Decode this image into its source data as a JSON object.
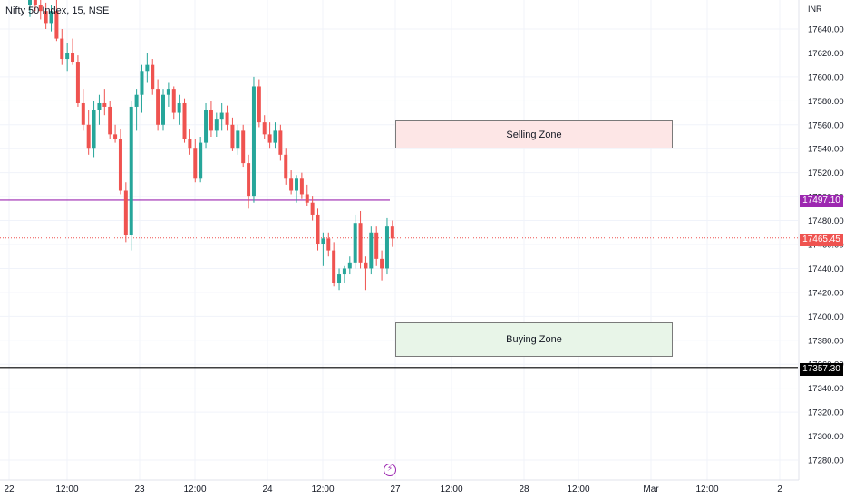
{
  "header": {
    "symbol_title": "Nifty 50 Index, 15, NSE",
    "currency": "INR"
  },
  "zones": {
    "selling": "Selling Zone",
    "buying": "Buying Zone"
  },
  "price_tags": {
    "purple": "17497.10",
    "current": "17465.45",
    "black": "17357.30"
  },
  "icons": {
    "event_marker": "lightning-icon"
  },
  "colors": {
    "up": "#26a69a",
    "down": "#ef5350",
    "purple_line": "#9c27b0",
    "black_line": "#000000",
    "current_line": "#ef5350",
    "grid": "#f0f3fa"
  },
  "chart_data": {
    "type": "candlestick",
    "title": "Nifty 50 Index, 15, NSE",
    "y_axis": {
      "unit": "INR",
      "ticks": [
        17640,
        17620,
        17600,
        17580,
        17560,
        17540,
        17520,
        17500,
        17480,
        17460,
        17440,
        17420,
        17400,
        17380,
        17360,
        17340,
        17320,
        17300,
        17280
      ],
      "tick_labels": [
        "17640.00",
        "17620.00",
        "17600.00",
        "17580.00",
        "17560.00",
        "17540.00",
        "17520.00",
        "17500.00",
        "17480.00",
        "17460.00",
        "17440.00",
        "17420.00",
        "17400.00",
        "17380.00",
        "17360.00",
        "17340.00",
        "17320.00",
        "17300.00",
        "17280.00"
      ],
      "ylim": [
        17268,
        17670
      ]
    },
    "x_axis": {
      "labels": [
        "22",
        "12:00",
        "23",
        "12:00",
        "24",
        "12:00",
        "27",
        "12:00",
        "28",
        "12:00",
        "Mar",
        "12:00",
        "2"
      ]
    },
    "horizontal_lines": [
      {
        "value": 17497.1,
        "color": "#9c27b0",
        "style": "solid"
      },
      {
        "value": 17465.45,
        "color": "#ef5350",
        "style": "dotted"
      },
      {
        "value": 17357.3,
        "color": "#000000",
        "style": "solid"
      }
    ],
    "zones": [
      {
        "label": "Selling Zone",
        "from": 17538,
        "to": 17568
      },
      {
        "label": "Buying Zone",
        "from": 17366,
        "to": 17402
      }
    ],
    "candles": [
      {
        "o": 17660,
        "h": 17672,
        "l": 17650,
        "c": 17665
      },
      {
        "o": 17668,
        "h": 17674,
        "l": 17655,
        "c": 17660
      },
      {
        "o": 17660,
        "h": 17672,
        "l": 17648,
        "c": 17655
      },
      {
        "o": 17655,
        "h": 17662,
        "l": 17640,
        "c": 17645
      },
      {
        "o": 17645,
        "h": 17660,
        "l": 17638,
        "c": 17655
      },
      {
        "o": 17655,
        "h": 17665,
        "l": 17630,
        "c": 17632
      },
      {
        "o": 17632,
        "h": 17640,
        "l": 17610,
        "c": 17615
      },
      {
        "o": 17615,
        "h": 17628,
        "l": 17605,
        "c": 17620
      },
      {
        "o": 17620,
        "h": 17632,
        "l": 17610,
        "c": 17612
      },
      {
        "o": 17612,
        "h": 17618,
        "l": 17575,
        "c": 17578
      },
      {
        "o": 17578,
        "h": 17590,
        "l": 17555,
        "c": 17560
      },
      {
        "o": 17560,
        "h": 17572,
        "l": 17535,
        "c": 17540
      },
      {
        "o": 17540,
        "h": 17580,
        "l": 17533,
        "c": 17572
      },
      {
        "o": 17572,
        "h": 17585,
        "l": 17560,
        "c": 17578
      },
      {
        "o": 17578,
        "h": 17590,
        "l": 17568,
        "c": 17575
      },
      {
        "o": 17575,
        "h": 17580,
        "l": 17548,
        "c": 17552
      },
      {
        "o": 17552,
        "h": 17560,
        "l": 17545,
        "c": 17548
      },
      {
        "o": 17548,
        "h": 17556,
        "l": 17502,
        "c": 17505
      },
      {
        "o": 17505,
        "h": 17512,
        "l": 17462,
        "c": 17468
      },
      {
        "o": 17468,
        "h": 17580,
        "l": 17455,
        "c": 17575
      },
      {
        "o": 17575,
        "h": 17590,
        "l": 17555,
        "c": 17585
      },
      {
        "o": 17585,
        "h": 17610,
        "l": 17570,
        "c": 17605
      },
      {
        "o": 17605,
        "h": 17620,
        "l": 17595,
        "c": 17610
      },
      {
        "o": 17610,
        "h": 17615,
        "l": 17585,
        "c": 17590
      },
      {
        "o": 17590,
        "h": 17598,
        "l": 17555,
        "c": 17560
      },
      {
        "o": 17560,
        "h": 17590,
        "l": 17555,
        "c": 17585
      },
      {
        "o": 17585,
        "h": 17595,
        "l": 17575,
        "c": 17590
      },
      {
        "o": 17590,
        "h": 17592,
        "l": 17565,
        "c": 17570
      },
      {
        "o": 17570,
        "h": 17585,
        "l": 17560,
        "c": 17578
      },
      {
        "o": 17578,
        "h": 17582,
        "l": 17545,
        "c": 17548
      },
      {
        "o": 17548,
        "h": 17556,
        "l": 17535,
        "c": 17540
      },
      {
        "o": 17540,
        "h": 17548,
        "l": 17512,
        "c": 17515
      },
      {
        "o": 17515,
        "h": 17550,
        "l": 17512,
        "c": 17545
      },
      {
        "o": 17545,
        "h": 17578,
        "l": 17540,
        "c": 17572
      },
      {
        "o": 17572,
        "h": 17580,
        "l": 17550,
        "c": 17555
      },
      {
        "o": 17555,
        "h": 17570,
        "l": 17550,
        "c": 17565
      },
      {
        "o": 17565,
        "h": 17578,
        "l": 17555,
        "c": 17570
      },
      {
        "o": 17570,
        "h": 17576,
        "l": 17555,
        "c": 17560
      },
      {
        "o": 17560,
        "h": 17566,
        "l": 17538,
        "c": 17540
      },
      {
        "o": 17540,
        "h": 17560,
        "l": 17535,
        "c": 17555
      },
      {
        "o": 17555,
        "h": 17560,
        "l": 17525,
        "c": 17528
      },
      {
        "o": 17528,
        "h": 17535,
        "l": 17490,
        "c": 17500
      },
      {
        "o": 17500,
        "h": 17600,
        "l": 17495,
        "c": 17592
      },
      {
        "o": 17592,
        "h": 17598,
        "l": 17558,
        "c": 17562
      },
      {
        "o": 17562,
        "h": 17568,
        "l": 17548,
        "c": 17552
      },
      {
        "o": 17552,
        "h": 17562,
        "l": 17540,
        "c": 17545
      },
      {
        "o": 17545,
        "h": 17562,
        "l": 17540,
        "c": 17555
      },
      {
        "o": 17555,
        "h": 17560,
        "l": 17530,
        "c": 17535
      },
      {
        "o": 17535,
        "h": 17540,
        "l": 17510,
        "c": 17515
      },
      {
        "o": 17515,
        "h": 17522,
        "l": 17502,
        "c": 17505
      },
      {
        "o": 17505,
        "h": 17518,
        "l": 17495,
        "c": 17515
      },
      {
        "o": 17515,
        "h": 17520,
        "l": 17498,
        "c": 17502
      },
      {
        "o": 17502,
        "h": 17510,
        "l": 17492,
        "c": 17495
      },
      {
        "o": 17495,
        "h": 17500,
        "l": 17480,
        "c": 17485
      },
      {
        "o": 17485,
        "h": 17490,
        "l": 17455,
        "c": 17460
      },
      {
        "o": 17460,
        "h": 17470,
        "l": 17442,
        "c": 17465
      },
      {
        "o": 17465,
        "h": 17470,
        "l": 17450,
        "c": 17455
      },
      {
        "o": 17455,
        "h": 17462,
        "l": 17425,
        "c": 17428
      },
      {
        "o": 17428,
        "h": 17440,
        "l": 17422,
        "c": 17435
      },
      {
        "o": 17435,
        "h": 17442,
        "l": 17428,
        "c": 17440
      },
      {
        "o": 17440,
        "h": 17450,
        "l": 17435,
        "c": 17445
      },
      {
        "o": 17445,
        "h": 17485,
        "l": 17440,
        "c": 17478
      },
      {
        "o": 17478,
        "h": 17488,
        "l": 17440,
        "c": 17445
      },
      {
        "o": 17445,
        "h": 17450,
        "l": 17422,
        "c": 17440
      },
      {
        "o": 17440,
        "h": 17475,
        "l": 17435,
        "c": 17470
      },
      {
        "o": 17470,
        "h": 17475,
        "l": 17442,
        "c": 17448
      },
      {
        "o": 17448,
        "h": 17455,
        "l": 17430,
        "c": 17440
      },
      {
        "o": 17440,
        "h": 17482,
        "l": 17435,
        "c": 17475
      },
      {
        "o": 17475,
        "h": 17480,
        "l": 17458,
        "c": 17465
      }
    ]
  }
}
